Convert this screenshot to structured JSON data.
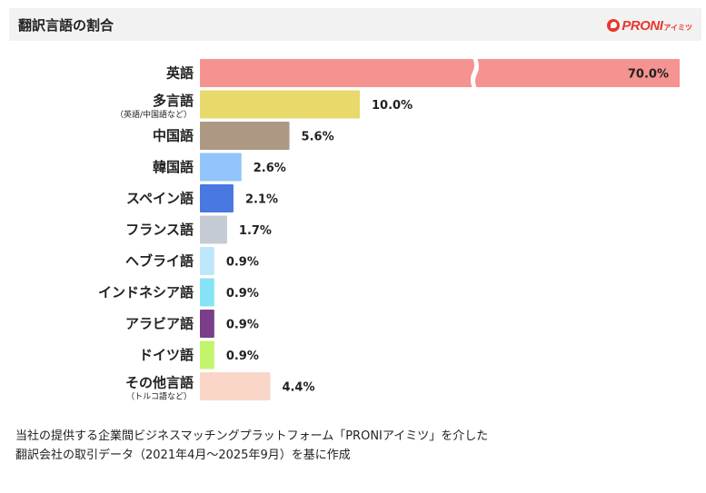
{
  "header": {
    "title": "翻訳言語の割合",
    "logo_text": "PRONI",
    "logo_sub": "アイミツ"
  },
  "chart_data": {
    "type": "bar",
    "orientation": "horizontal",
    "title": "翻訳言語の割合",
    "value_unit": "%",
    "axis_break_on_first_bar": true,
    "categories": [
      {
        "label": "英語",
        "sublabel": "",
        "value": 70.0,
        "display": "70.0%",
        "color": "#f49390"
      },
      {
        "label": "多言語",
        "sublabel": "（英語/中国語など）",
        "value": 10.0,
        "display": "10.0%",
        "color": "#e8da6a"
      },
      {
        "label": "中国語",
        "sublabel": "",
        "value": 5.6,
        "display": "5.6%",
        "color": "#ad9883"
      },
      {
        "label": "韓国語",
        "sublabel": "",
        "value": 2.6,
        "display": "2.6%",
        "color": "#93c4fb"
      },
      {
        "label": "スペイン語",
        "sublabel": "",
        "value": 2.1,
        "display": "2.1%",
        "color": "#4878e0"
      },
      {
        "label": "フランス語",
        "sublabel": "",
        "value": 1.7,
        "display": "1.7%",
        "color": "#c5cbd3"
      },
      {
        "label": "ヘブライ語",
        "sublabel": "",
        "value": 0.9,
        "display": "0.9%",
        "color": "#bde6fb"
      },
      {
        "label": "インドネシア語",
        "sublabel": "",
        "value": 0.9,
        "display": "0.9%",
        "color": "#86e3f6"
      },
      {
        "label": "アラビア語",
        "sublabel": "",
        "value": 0.9,
        "display": "0.9%",
        "color": "#7a3e8a"
      },
      {
        "label": "ドイツ語",
        "sublabel": "",
        "value": 0.9,
        "display": "0.9%",
        "color": "#c2f56b"
      },
      {
        "label": "その他言語",
        "sublabel": "（トルコ語など）",
        "value": 4.4,
        "display": "4.4%",
        "color": "#f9d6c8"
      }
    ]
  },
  "footer": {
    "line1": "当社の提供する企業間ビジネスマッチングプラットフォーム「PRONIアイミツ」を介した",
    "line2": "翻訳会社の取引データ（2021年4月〜2025年9月）を基に作成"
  },
  "colors": {
    "header_bg": "#f2f2f2",
    "brand": "#e8372c"
  }
}
